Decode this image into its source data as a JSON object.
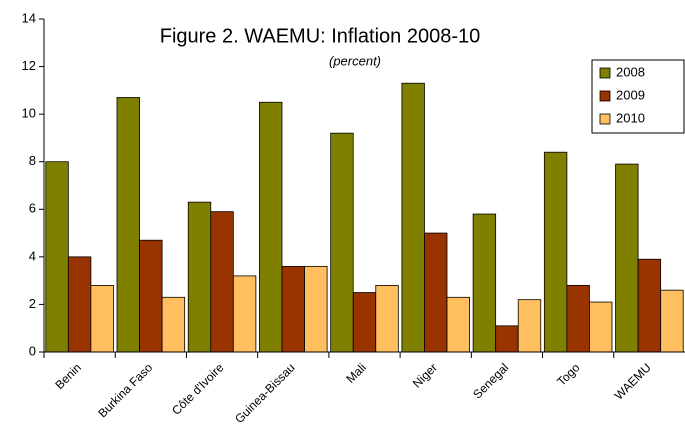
{
  "chart_data": {
    "type": "bar",
    "title": "Figure 2. WAEMU: Inflation 2008-10",
    "subtitle": "(percent)",
    "categories": [
      "Benin",
      "Burkina Faso",
      "Côte d'Ivoire",
      "Guinea-Bissau",
      "Mali",
      "Niger",
      "Senegal",
      "Togo",
      "WAEMU"
    ],
    "series": [
      {
        "name": "2008",
        "color": "#808000",
        "values": [
          8.0,
          10.7,
          6.3,
          10.5,
          9.2,
          11.3,
          5.8,
          8.4,
          7.9
        ]
      },
      {
        "name": "2009",
        "color": "#993300",
        "values": [
          4.0,
          4.7,
          5.9,
          3.6,
          2.5,
          5.0,
          1.1,
          2.8,
          3.9
        ]
      },
      {
        "name": "2010",
        "color": "#ffbf5f",
        "values": [
          2.8,
          2.3,
          3.2,
          3.6,
          2.8,
          2.3,
          2.2,
          2.1,
          2.6
        ]
      }
    ],
    "ylim": [
      0,
      14
    ],
    "yticks": [
      0,
      2,
      4,
      6,
      8,
      10,
      12,
      14
    ],
    "grid": false,
    "legend": "upper right"
  }
}
